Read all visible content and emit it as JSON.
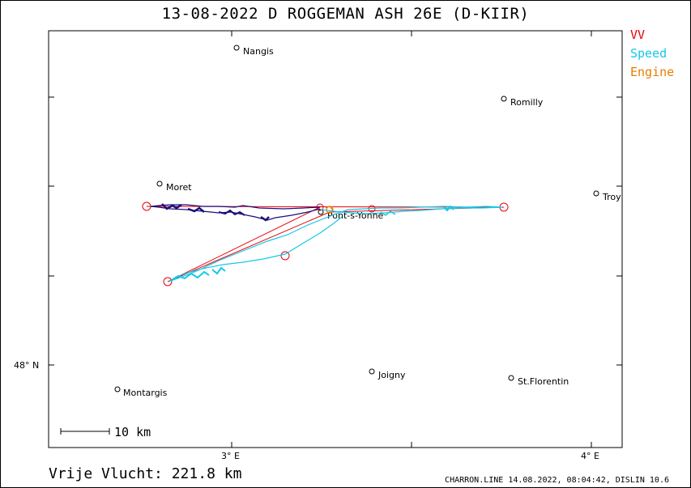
{
  "title": "13-08-2022   D ROGGEMAN   ASH 26E (D-KIIR)",
  "legend": [
    {
      "label": "VV",
      "color": "#e8000a"
    },
    {
      "label": "Speed",
      "color": "#16c8e8"
    },
    {
      "label": "Engine",
      "color": "#e87d00"
    }
  ],
  "axes": {
    "x_ticks": [
      "3° E",
      "4° E"
    ],
    "y_ticks": [
      "48° N"
    ]
  },
  "towns": [
    {
      "name": "Nangis"
    },
    {
      "name": "Romilly"
    },
    {
      "name": "Moret"
    },
    {
      "name": "Troy"
    },
    {
      "name": "Pont-s-Yonne"
    },
    {
      "name": "Joigny"
    },
    {
      "name": "Montargis"
    },
    {
      "name": "St.Florentin"
    }
  ],
  "scale_label": "10 km",
  "footer": {
    "distance": "Vrije Vlucht:  221.8 km",
    "source": "CHARRON.LINE 14.08.2022, 08:04:42, DISLIN 10.6"
  }
}
